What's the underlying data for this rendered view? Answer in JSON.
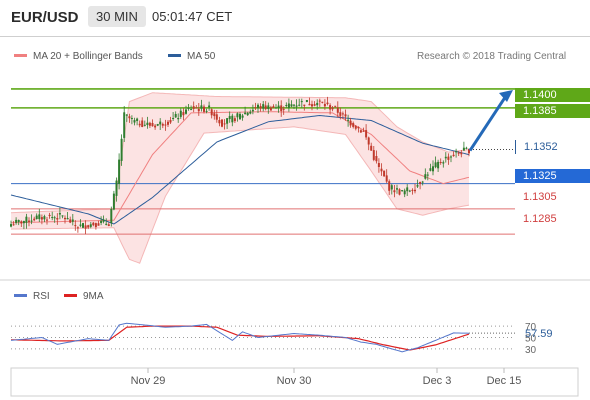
{
  "header": {
    "symbol": "EUR/USD",
    "timeframe": "30 MIN",
    "time": "05:01:47 CET"
  },
  "legend": {
    "ma20_label": "MA 20 + Bollinger Bands",
    "ma50_label": "MA 50",
    "research": "Research © 2018 Trading Central"
  },
  "colors": {
    "bull": "#2f7d2f",
    "bear": "#c0392b",
    "ma50": "#2c5d9a",
    "ma20": "#f08080",
    "band": "#fbdada",
    "resistance": "#5fa818",
    "pivot": "#3a6fc4",
    "support": "#e07070",
    "arrow": "#2469b8",
    "rsi": "#5577cc",
    "rsi_ma": "#dd2222"
  },
  "levels": [
    {
      "label": "1.1400",
      "value": 1.14,
      "kind": "resistance"
    },
    {
      "label": "1.1385",
      "value": 1.1385,
      "kind": "resistance"
    },
    {
      "label": "1.1352",
      "value": 1.1352,
      "kind": "current"
    },
    {
      "label": "1.1325",
      "value": 1.1325,
      "kind": "pivot"
    },
    {
      "label": "1.1305",
      "value": 1.1305,
      "kind": "support"
    },
    {
      "label": "1.1285",
      "value": 1.1285,
      "kind": "support"
    }
  ],
  "rsi": {
    "label": "RSI",
    "ma_label": "9MA",
    "value": "57.59",
    "ticks": [
      "70",
      "50",
      "30"
    ]
  },
  "x_axis": {
    "labels": [
      "Nov 29",
      "Nov 30",
      "Dec 3",
      "Dec 15"
    ]
  },
  "chart_data": {
    "type": "candlestick",
    "symbol": "EUR/USD",
    "interval": "30 MIN",
    "ylim": [
      1.1255,
      1.1415
    ],
    "price_anchors": [
      [
        0,
        1.1293
      ],
      [
        10,
        1.1298
      ],
      [
        20,
        1.1299
      ],
      [
        26,
        1.1291
      ],
      [
        34,
        1.1294
      ],
      [
        38,
        1.1294
      ],
      [
        41,
        1.1325
      ],
      [
        44,
        1.1379
      ],
      [
        48,
        1.1374
      ],
      [
        55,
        1.1371
      ],
      [
        62,
        1.1375
      ],
      [
        70,
        1.1385
      ],
      [
        77,
        1.1384
      ],
      [
        82,
        1.1373
      ],
      [
        88,
        1.1378
      ],
      [
        96,
        1.1386
      ],
      [
        105,
        1.1385
      ],
      [
        112,
        1.1389
      ],
      [
        120,
        1.1389
      ],
      [
        126,
        1.1384
      ],
      [
        131,
        1.1375
      ],
      [
        137,
        1.1366
      ],
      [
        142,
        1.1341
      ],
      [
        147,
        1.1322
      ],
      [
        152,
        1.1318
      ],
      [
        157,
        1.1322
      ],
      [
        162,
        1.1334
      ],
      [
        168,
        1.1344
      ],
      [
        173,
        1.1349
      ],
      [
        178,
        1.1352
      ]
    ],
    "ma50_anchors": [
      [
        0,
        1.1316
      ],
      [
        30,
        1.1301
      ],
      [
        40,
        1.1293
      ],
      [
        55,
        1.1314
      ],
      [
        80,
        1.1358
      ],
      [
        100,
        1.1374
      ],
      [
        120,
        1.1379
      ],
      [
        140,
        1.1375
      ],
      [
        160,
        1.1357
      ],
      [
        178,
        1.1348
      ]
    ],
    "ma20_anchors": [
      [
        0,
        1.1294
      ],
      [
        40,
        1.1296
      ],
      [
        55,
        1.1348
      ],
      [
        70,
        1.1381
      ],
      [
        100,
        1.1382
      ],
      [
        125,
        1.1381
      ],
      [
        140,
        1.1364
      ],
      [
        155,
        1.1335
      ],
      [
        168,
        1.1325
      ],
      [
        178,
        1.133
      ]
    ],
    "bb_upper_anchors": [
      [
        0,
        1.1302
      ],
      [
        40,
        1.1305
      ],
      [
        46,
        1.139
      ],
      [
        55,
        1.1397
      ],
      [
        80,
        1.1394
      ],
      [
        130,
        1.1393
      ],
      [
        140,
        1.139
      ],
      [
        150,
        1.137
      ],
      [
        160,
        1.1358
      ],
      [
        170,
        1.135
      ],
      [
        178,
        1.1352
      ]
    ],
    "bb_lower_anchors": [
      [
        0,
        1.1289
      ],
      [
        40,
        1.129
      ],
      [
        46,
        1.1265
      ],
      [
        50,
        1.1262
      ],
      [
        60,
        1.1315
      ],
      [
        75,
        1.1365
      ],
      [
        110,
        1.137
      ],
      [
        130,
        1.1364
      ],
      [
        140,
        1.1335
      ],
      [
        150,
        1.1305
      ],
      [
        160,
        1.13
      ],
      [
        170,
        1.1305
      ],
      [
        178,
        1.1308
      ]
    ],
    "rsi_anchors": [
      [
        0,
        45
      ],
      [
        12,
        50
      ],
      [
        18,
        38
      ],
      [
        30,
        48
      ],
      [
        38,
        45
      ],
      [
        42,
        72
      ],
      [
        45,
        75
      ],
      [
        52,
        72
      ],
      [
        60,
        68
      ],
      [
        70,
        70
      ],
      [
        76,
        73
      ],
      [
        80,
        62
      ],
      [
        86,
        45
      ],
      [
        90,
        60
      ],
      [
        96,
        50
      ],
      [
        110,
        57
      ],
      [
        120,
        54
      ],
      [
        130,
        50
      ],
      [
        136,
        42
      ],
      [
        142,
        38
      ],
      [
        148,
        30
      ],
      [
        152,
        25
      ],
      [
        158,
        32
      ],
      [
        165,
        45
      ],
      [
        172,
        58
      ],
      [
        178,
        57.59
      ]
    ],
    "rsi_ma_anchors": [
      [
        0,
        46
      ],
      [
        20,
        44
      ],
      [
        38,
        45
      ],
      [
        45,
        68
      ],
      [
        55,
        70
      ],
      [
        70,
        70
      ],
      [
        80,
        68
      ],
      [
        88,
        54
      ],
      [
        100,
        52
      ],
      [
        120,
        53
      ],
      [
        135,
        48
      ],
      [
        145,
        37
      ],
      [
        155,
        28
      ],
      [
        165,
        37
      ],
      [
        178,
        56
      ]
    ],
    "rsi_ylim": [
      0,
      100
    ],
    "forecast": {
      "from": 1.1352,
      "to": 1.14
    }
  }
}
